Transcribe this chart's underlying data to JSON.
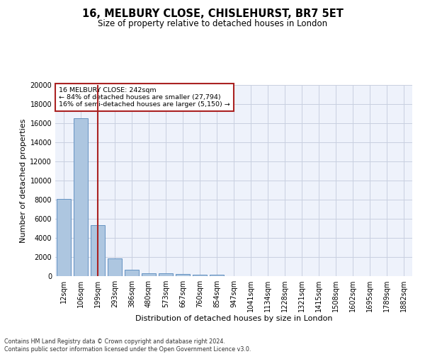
{
  "title": "16, MELBURY CLOSE, CHISLEHURST, BR7 5ET",
  "subtitle": "Size of property relative to detached houses in London",
  "xlabel": "Distribution of detached houses by size in London",
  "ylabel": "Number of detached properties",
  "footer_line1": "Contains HM Land Registry data © Crown copyright and database right 2024.",
  "footer_line2": "Contains public sector information licensed under the Open Government Licence v3.0.",
  "bar_labels": [
    "12sqm",
    "106sqm",
    "199sqm",
    "293sqm",
    "386sqm",
    "480sqm",
    "573sqm",
    "667sqm",
    "760sqm",
    "854sqm",
    "947sqm",
    "1041sqm",
    "1134sqm",
    "1228sqm",
    "1321sqm",
    "1415sqm",
    "1508sqm",
    "1602sqm",
    "1695sqm",
    "1789sqm",
    "1882sqm"
  ],
  "bar_values": [
    8100,
    16500,
    5300,
    1850,
    650,
    330,
    265,
    195,
    165,
    115,
    0,
    0,
    0,
    0,
    0,
    0,
    0,
    0,
    0,
    0,
    0
  ],
  "bar_color": "#adc6e0",
  "bar_edge_color": "#5588bb",
  "vline_x": 2,
  "vline_color": "#aa2222",
  "annotation_text": "16 MELBURY CLOSE: 242sqm\n← 84% of detached houses are smaller (27,794)\n16% of semi-detached houses are larger (5,150) →",
  "annotation_box_color": "#aa2222",
  "annotation_text_color": "#000000",
  "ylim": [
    0,
    20000
  ],
  "yticks": [
    0,
    2000,
    4000,
    6000,
    8000,
    10000,
    12000,
    14000,
    16000,
    18000,
    20000
  ],
  "background_color": "#eef2fb",
  "grid_color": "#c8cfe0",
  "title_fontsize": 10.5,
  "subtitle_fontsize": 8.5,
  "xlabel_fontsize": 8,
  "ylabel_fontsize": 8,
  "tick_fontsize": 7,
  "annotation_fontsize": 6.8,
  "footer_fontsize": 5.8
}
